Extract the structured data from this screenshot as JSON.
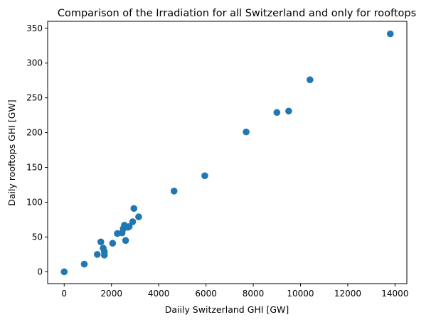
{
  "chart_data": {
    "type": "scatter",
    "title": "Comparison of the Irradiation for all Switzerland and only for rooftops",
    "xlabel": "Daiily Switzerland GHI [GW]",
    "ylabel": "Daily rooftops GHI [GW]",
    "xlim": [
      -700,
      14500
    ],
    "ylim": [
      -17,
      360
    ],
    "xticks": [
      0,
      2000,
      4000,
      6000,
      8000,
      10000,
      12000,
      14000
    ],
    "xtick_labels": [
      "0",
      "2000",
      "4000",
      "6000",
      "8000",
      "10000",
      "12000",
      "14000"
    ],
    "yticks": [
      0,
      50,
      100,
      150,
      200,
      250,
      300,
      350
    ],
    "ytick_labels": [
      "0",
      "50",
      "100",
      "150",
      "200",
      "250",
      "300",
      "350"
    ],
    "grid": false,
    "marker_color": "#1f77b4",
    "points": [
      {
        "x": 0,
        "y": 0
      },
      {
        "x": 850,
        "y": 11
      },
      {
        "x": 1400,
        "y": 25
      },
      {
        "x": 1550,
        "y": 43
      },
      {
        "x": 1650,
        "y": 34
      },
      {
        "x": 1700,
        "y": 29
      },
      {
        "x": 1700,
        "y": 24
      },
      {
        "x": 2050,
        "y": 41
      },
      {
        "x": 2250,
        "y": 55
      },
      {
        "x": 2450,
        "y": 56
      },
      {
        "x": 2500,
        "y": 62
      },
      {
        "x": 2550,
        "y": 67
      },
      {
        "x": 2600,
        "y": 45
      },
      {
        "x": 2700,
        "y": 64
      },
      {
        "x": 2750,
        "y": 65
      },
      {
        "x": 2900,
        "y": 72
      },
      {
        "x": 2950,
        "y": 91
      },
      {
        "x": 3150,
        "y": 79
      },
      {
        "x": 4650,
        "y": 116
      },
      {
        "x": 5950,
        "y": 138
      },
      {
        "x": 7700,
        "y": 201
      },
      {
        "x": 9000,
        "y": 229
      },
      {
        "x": 9500,
        "y": 231
      },
      {
        "x": 10400,
        "y": 276
      },
      {
        "x": 13800,
        "y": 342
      }
    ]
  }
}
